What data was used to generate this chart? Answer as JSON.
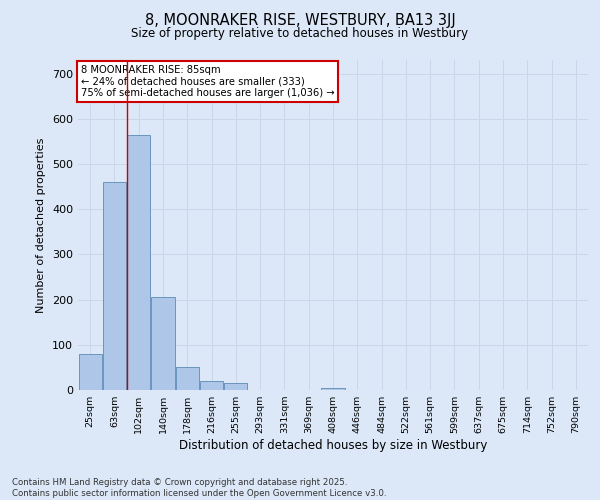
{
  "title_line1": "8, MOONRAKER RISE, WESTBURY, BA13 3JJ",
  "title_line2": "Size of property relative to detached houses in Westbury",
  "xlabel": "Distribution of detached houses by size in Westbury",
  "ylabel": "Number of detached properties",
  "categories": [
    "25sqm",
    "63sqm",
    "102sqm",
    "140sqm",
    "178sqm",
    "216sqm",
    "255sqm",
    "293sqm",
    "331sqm",
    "369sqm",
    "408sqm",
    "446sqm",
    "484sqm",
    "522sqm",
    "561sqm",
    "599sqm",
    "637sqm",
    "675sqm",
    "714sqm",
    "752sqm",
    "790sqm"
  ],
  "values": [
    80,
    460,
    565,
    205,
    50,
    20,
    15,
    0,
    0,
    0,
    5,
    0,
    0,
    0,
    0,
    0,
    0,
    0,
    0,
    0,
    0
  ],
  "bar_color": "#aec6e8",
  "bar_edge_color": "#5b8db8",
  "grid_color": "#ccd6e8",
  "background_color": "#dce8f8",
  "annotation_line1": "8 MOONRAKER RISE: 85sqm",
  "annotation_line2": "← 24% of detached houses are smaller (333)",
  "annotation_line3": "75% of semi-detached houses are larger (1,036) →",
  "annotation_box_color": "#ffffff",
  "annotation_border_color": "#cc0000",
  "vline_color": "#cc0000",
  "vline_x": 1.5,
  "ylim": [
    0,
    730
  ],
  "yticks": [
    0,
    100,
    200,
    300,
    400,
    500,
    600,
    700
  ],
  "footer_line1": "Contains HM Land Registry data © Crown copyright and database right 2025.",
  "footer_line2": "Contains public sector information licensed under the Open Government Licence v3.0."
}
